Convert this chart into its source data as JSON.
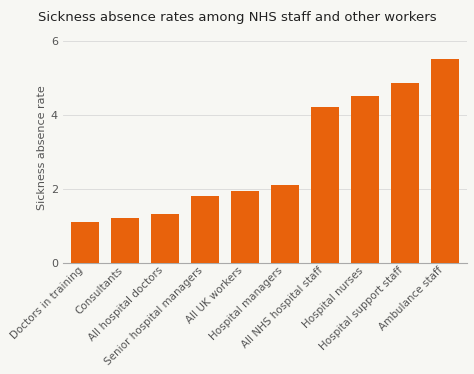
{
  "title": "Sickness absence rates among NHS staff and other workers",
  "categories": [
    "Doctors in training",
    "Consultants",
    "All hospital doctors",
    "Senior hospital managers",
    "All UK workers",
    "Hospital managers",
    "All NHS hospital staff",
    "Hospital nurses",
    "Hospital support staff",
    "Ambulance staff"
  ],
  "values": [
    1.1,
    1.2,
    1.3,
    1.8,
    1.93,
    2.1,
    4.2,
    4.5,
    4.85,
    5.5
  ],
  "bar_color": "#E8620C",
  "ylabel": "Sickness absence rate",
  "ylim": [
    0,
    6.2
  ],
  "yticks": [
    0,
    2,
    4,
    6
  ],
  "background_color": "#f7f7f3",
  "title_fontsize": 9.5,
  "ylabel_fontsize": 8,
  "tick_fontsize": 7.5,
  "grid_color": "#d8d8d8"
}
